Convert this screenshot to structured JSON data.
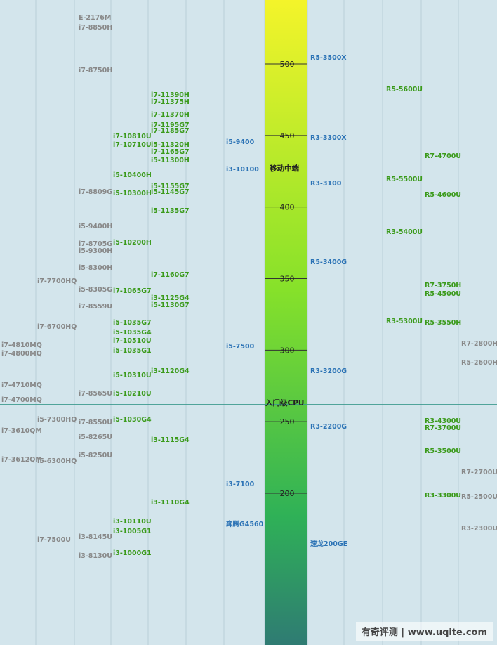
{
  "colors": {
    "background": "#d3e5ec",
    "column_line": "#b9d0d9",
    "divider": "#3d9a8f",
    "intel": "#888888",
    "intel_new": "#3a9a1a",
    "amd": "#2a72b5",
    "amd_green": "#3a9a1a",
    "amd_gray": "#888888",
    "bar_top": "#f4f42a",
    "bar_mid": "#86e12a",
    "bar_low": "#2fb157",
    "bar_bottom": "#2f7b73"
  },
  "watermark": "有奇评测 | www.uqite.com",
  "chart_data": {
    "type": "table",
    "scale": {
      "ticks": [
        500,
        450,
        400,
        350,
        300,
        250,
        200
      ],
      "visible_range": [
        150,
        540
      ]
    },
    "tiers": [
      {
        "label": "移动中端",
        "value": 428
      },
      {
        "label": "入门级CPU",
        "value": 264
      }
    ],
    "columns": [
      {
        "entries": [
          {
            "name": "i7-4810MQ",
            "score": 303,
            "color": "intel"
          },
          {
            "name": "i7-4800MQ",
            "score": 297,
            "color": "intel"
          },
          {
            "name": "i7-4710MQ",
            "score": 275,
            "color": "intel"
          },
          {
            "name": "i7-4700MQ",
            "score": 265,
            "color": "intel"
          },
          {
            "name": "i7-3610QM",
            "score": 243,
            "color": "intel"
          },
          {
            "name": "i7-3612QM",
            "score": 223,
            "color": "intel"
          }
        ]
      },
      {
        "entries": [
          {
            "name": "i7-7700HQ",
            "score": 348,
            "color": "intel"
          },
          {
            "name": "i7-6700HQ",
            "score": 316,
            "color": "intel"
          },
          {
            "name": "i5-7300HQ",
            "score": 251,
            "color": "intel"
          },
          {
            "name": "i5-6300HQ",
            "score": 222,
            "color": "intel"
          },
          {
            "name": "i7-7500U",
            "score": 167,
            "color": "intel"
          }
        ]
      },
      {
        "entries": [
          {
            "name": "E-2176M",
            "score": 532,
            "color": "intel"
          },
          {
            "name": "i7-8850H",
            "score": 525,
            "color": "intel"
          },
          {
            "name": "i7-8750H",
            "score": 495,
            "color": "intel"
          },
          {
            "name": "i7-8809G",
            "score": 410,
            "color": "intel"
          },
          {
            "name": "i5-9400H",
            "score": 386,
            "color": "intel"
          },
          {
            "name": "i7-8705G",
            "score": 374,
            "color": "intel"
          },
          {
            "name": "i5-9300H",
            "score": 369,
            "color": "intel"
          },
          {
            "name": "i5-8300H",
            "score": 357,
            "color": "intel"
          },
          {
            "name": "i5-8305G",
            "score": 342,
            "color": "intel"
          },
          {
            "name": "i7-8559U",
            "score": 330,
            "color": "intel"
          },
          {
            "name": "i7-8565U",
            "score": 269,
            "color": "intel"
          },
          {
            "name": "i7-8550U",
            "score": 249,
            "color": "intel"
          },
          {
            "name": "i5-8265U",
            "score": 239,
            "color": "intel"
          },
          {
            "name": "i5-8250U",
            "score": 226,
            "color": "intel"
          },
          {
            "name": "i3-8145U",
            "score": 169,
            "color": "intel"
          },
          {
            "name": "i3-8130U",
            "score": 156,
            "color": "intel"
          }
        ]
      },
      {
        "entries": [
          {
            "name": "i7-10810U",
            "score": 449,
            "color": "intel_new"
          },
          {
            "name": "i7-10710U",
            "score": 443,
            "color": "intel_new"
          },
          {
            "name": "i5-10400H",
            "score": 422,
            "color": "intel_new"
          },
          {
            "name": "i5-10300H",
            "score": 409,
            "color": "intel_new"
          },
          {
            "name": "i5-10200H",
            "score": 375,
            "color": "intel_new"
          },
          {
            "name": "i7-1065G7",
            "score": 341,
            "color": "intel_new"
          },
          {
            "name": "i5-1035G7",
            "score": 319,
            "color": "intel_new"
          },
          {
            "name": "i5-1035G4",
            "score": 312,
            "color": "intel_new"
          },
          {
            "name": "i7-10510U",
            "score": 306,
            "color": "intel_new"
          },
          {
            "name": "i5-1035G1",
            "score": 299,
            "color": "intel_new"
          },
          {
            "name": "i5-10310U",
            "score": 282,
            "color": "intel_new"
          },
          {
            "name": "i5-10210U",
            "score": 269,
            "color": "intel_new"
          },
          {
            "name": "i5-1030G4",
            "score": 251,
            "color": "intel_new"
          },
          {
            "name": "i3-10110U",
            "score": 180,
            "color": "intel_new"
          },
          {
            "name": "i3-1005G1",
            "score": 173,
            "color": "intel_new"
          },
          {
            "name": "i3-1000G1",
            "score": 158,
            "color": "intel_new"
          }
        ]
      },
      {
        "entries": [
          {
            "name": "i7-11390H",
            "score": 478,
            "color": "intel_new"
          },
          {
            "name": "i7-11375H",
            "score": 473,
            "color": "intel_new"
          },
          {
            "name": "i7-11370H",
            "score": 464,
            "color": "intel_new"
          },
          {
            "name": "i7-1195G7",
            "score": 457,
            "color": "intel_new"
          },
          {
            "name": "i7-1185G7",
            "score": 453,
            "color": "intel_new"
          },
          {
            "name": "i5-11320H",
            "score": 443,
            "color": "intel_new"
          },
          {
            "name": "i7-1165G7",
            "score": 438,
            "color": "intel_new"
          },
          {
            "name": "i5-11300H",
            "score": 432,
            "color": "intel_new"
          },
          {
            "name": "i5-1155G7",
            "score": 414,
            "color": "intel_new"
          },
          {
            "name": "i5-1145G7",
            "score": 410,
            "color": "intel_new"
          },
          {
            "name": "i5-1135G7",
            "score": 397,
            "color": "intel_new"
          },
          {
            "name": "i7-1160G7",
            "score": 352,
            "color": "intel_new"
          },
          {
            "name": "i3-1125G4",
            "score": 336,
            "color": "intel_new"
          },
          {
            "name": "i5-1130G7",
            "score": 331,
            "color": "intel_new"
          },
          {
            "name": "i3-1120G4",
            "score": 285,
            "color": "intel_new"
          },
          {
            "name": "i3-1115G4",
            "score": 237,
            "color": "intel_new"
          },
          {
            "name": "i3-1110G4",
            "score": 193,
            "color": "intel_new"
          }
        ]
      },
      {
        "entries": []
      },
      {
        "entries": [
          {
            "name": "i5-9400",
            "score": 445,
            "color": "amd"
          },
          {
            "name": "i3-10100",
            "score": 426,
            "color": "amd"
          },
          {
            "name": "i5-7500",
            "score": 302,
            "color": "amd"
          },
          {
            "name": "i3-7100",
            "score": 206,
            "color": "amd"
          },
          {
            "name": "奔腾G4560",
            "score": 178,
            "color": "amd"
          }
        ]
      },
      {
        "entries": [
          {
            "name": "R5-3500X",
            "score": 504,
            "color": "amd"
          },
          {
            "name": "R3-3300X",
            "score": 448,
            "color": "amd"
          },
          {
            "name": "R3-3100",
            "score": 416,
            "color": "amd"
          },
          {
            "name": "R5-3400G",
            "score": 361,
            "color": "amd"
          },
          {
            "name": "R3-3200G",
            "score": 285,
            "color": "amd"
          },
          {
            "name": "R3-2200G",
            "score": 246,
            "color": "amd"
          },
          {
            "name": "速龙200GE",
            "score": 164,
            "color": "amd"
          }
        ]
      },
      {
        "entries": []
      },
      {
        "entries": [
          {
            "name": "R5-5600U",
            "score": 482,
            "color": "amd_green"
          },
          {
            "name": "R5-5500U",
            "score": 419,
            "color": "amd_green"
          },
          {
            "name": "R3-5400U",
            "score": 382,
            "color": "amd_green"
          },
          {
            "name": "R3-5300U",
            "score": 320,
            "color": "amd_green"
          }
        ]
      },
      {
        "entries": [
          {
            "name": "R7-4700U",
            "score": 435,
            "color": "amd_green"
          },
          {
            "name": "R5-4600U",
            "score": 408,
            "color": "amd_green"
          },
          {
            "name": "R7-3750H",
            "score": 345,
            "color": "amd_green"
          },
          {
            "name": "R5-4500U",
            "score": 339,
            "color": "amd_green"
          },
          {
            "name": "R5-3550H",
            "score": 319,
            "color": "amd_green"
          },
          {
            "name": "R3-4300U",
            "score": 250,
            "color": "amd_green"
          },
          {
            "name": "R7-3700U",
            "score": 245,
            "color": "amd_green"
          },
          {
            "name": "R5-3500U",
            "score": 229,
            "color": "amd_green"
          },
          {
            "name": "R3-3300U",
            "score": 198,
            "color": "amd_green"
          }
        ]
      },
      {
        "entries": [
          {
            "name": "R7-2800H",
            "score": 304,
            "color": "amd_gray"
          },
          {
            "name": "R5-2600H",
            "score": 291,
            "color": "amd_gray"
          },
          {
            "name": "R7-2700U",
            "score": 214,
            "color": "amd_gray"
          },
          {
            "name": "R5-2500U",
            "score": 197,
            "color": "amd_gray"
          },
          {
            "name": "R3-2300U",
            "score": 175,
            "color": "amd_gray"
          }
        ]
      }
    ]
  }
}
